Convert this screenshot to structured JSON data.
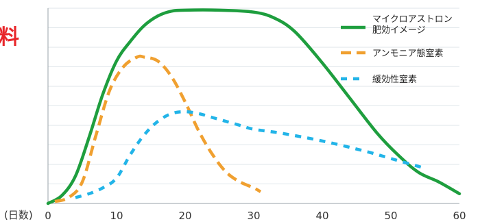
{
  "side_glyph": "料",
  "chart_data": {
    "type": "line",
    "title": "",
    "xlabel": "(日数)",
    "ylabel": "",
    "xlim": [
      0,
      60
    ],
    "ylim": [
      0,
      100
    ],
    "xticks": [
      0,
      10,
      20,
      30,
      40,
      50,
      60
    ],
    "grid": true,
    "legend_position": "top-right",
    "series": [
      {
        "name": "マイクロアストロン肥効イメージ",
        "legend_lines": [
          "マイクロアストロン",
          "肥効イメージ"
        ],
        "color": "#1e9e3e",
        "style": "solid",
        "x": [
          0,
          2,
          4,
          6,
          8,
          10,
          12,
          14,
          16,
          18,
          20,
          25,
          30,
          33,
          36,
          40,
          44,
          48,
          51,
          54,
          57,
          60
        ],
        "y": [
          0,
          4,
          14,
          34,
          56,
          73,
          83,
          91,
          96,
          98.5,
          99,
          99,
          98,
          95,
          88,
          72,
          54,
          36,
          25,
          16,
          11,
          5
        ]
      },
      {
        "name": "アンモニア態窒素",
        "legend_lines": [
          "アンモニア態窒素"
        ],
        "color": "#f0a030",
        "style": "dash",
        "x": [
          1,
          3,
          5,
          7,
          9,
          11,
          13,
          14,
          16,
          18,
          20,
          22,
          24,
          26,
          28,
          30,
          31
        ],
        "y": [
          1,
          3,
          11,
          35,
          58,
          70,
          75,
          75,
          73,
          65,
          52,
          37,
          25,
          16,
          11,
          8,
          6
        ]
      },
      {
        "name": "緩効性窒素",
        "legend_lines": [
          "緩効性窒素"
        ],
        "color": "#22b4e8",
        "style": "dot",
        "x": [
          4,
          6,
          8,
          10,
          12,
          14,
          16,
          18,
          20,
          22,
          24,
          26,
          28,
          30,
          34,
          40,
          46,
          50,
          54,
          55
        ],
        "y": [
          3,
          5,
          8,
          13,
          25,
          35,
          42,
          46,
          47,
          46,
          44,
          42,
          40,
          38,
          36,
          32,
          27,
          23,
          19,
          18
        ]
      }
    ]
  }
}
